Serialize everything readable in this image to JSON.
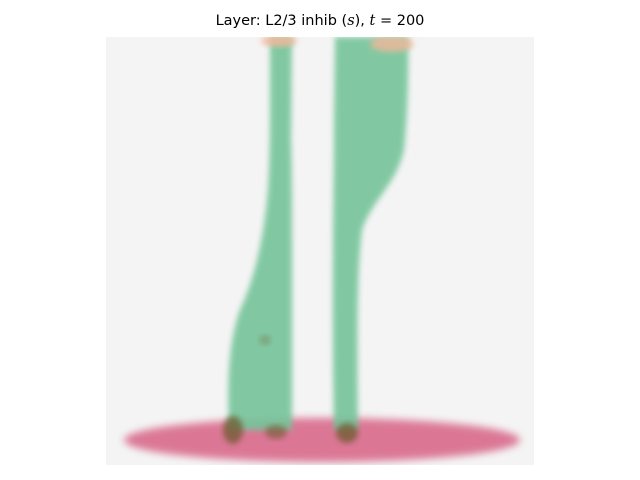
{
  "title": {
    "prefix": "Layer: L2/3 inhib (",
    "var": "s",
    "middle": "), ",
    "t_var": "t",
    "eq": " = 200"
  },
  "chart_data": {
    "type": "heatmap",
    "title": "Layer: L2/3 inhib (s), t = 200",
    "xlabel": "",
    "ylabel": "",
    "axes_visible": false,
    "background_color": "#f4f4f4",
    "regions": [
      {
        "name": "thin vertical band",
        "color": "#75c49a"
      },
      {
        "name": "right vertical band",
        "color": "#75c49a"
      },
      {
        "name": "bottom horizontal band",
        "color": "#d96d8e"
      },
      {
        "name": "top edge spots",
        "color": "#f2b89a"
      },
      {
        "name": "overlap spots",
        "color": "#6e5a2e"
      }
    ]
  }
}
